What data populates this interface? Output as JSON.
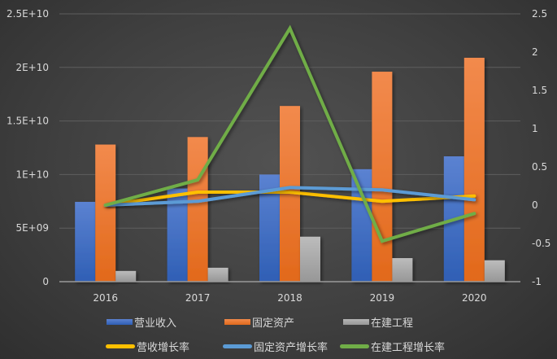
{
  "chart_data": {
    "type": "bar+line",
    "title": "",
    "categories": [
      "2016",
      "2017",
      "2018",
      "2019",
      "2020"
    ],
    "left_axis": {
      "ticks": [
        "0",
        "5E+09",
        "1E+10",
        "1.5E+10",
        "2E+10",
        "2.5E+10"
      ],
      "ylim": [
        0,
        25000000000
      ]
    },
    "right_axis": {
      "ticks": [
        "-1",
        "-0.5",
        "0",
        "0.5",
        "1",
        "1.5",
        "2",
        "2.5"
      ],
      "ylim": [
        -1,
        2.5
      ]
    },
    "grid": true,
    "legend_position": "bottom",
    "series": [
      {
        "name": "营业收入",
        "type": "bar",
        "axis": "left",
        "color": "#4472c4",
        "values": [
          7450000000,
          8700000000,
          10000000000,
          10500000000,
          11700000000
        ]
      },
      {
        "name": "固定资产",
        "type": "bar",
        "axis": "left",
        "color": "#ed7d31",
        "values": [
          12800000000,
          13500000000,
          16400000000,
          19600000000,
          20900000000
        ]
      },
      {
        "name": "在建工程",
        "type": "bar",
        "axis": "left",
        "color": "#a5a5a5",
        "values": [
          1000000000,
          1300000000,
          4200000000,
          2200000000,
          2000000000
        ]
      },
      {
        "name": "营收增长率",
        "type": "line",
        "axis": "right",
        "color": "#ffc000",
        "values": [
          0,
          0.17,
          0.17,
          0.05,
          0.12
        ]
      },
      {
        "name": "固定资产增长率",
        "type": "line",
        "axis": "right",
        "color": "#5b9bd5",
        "values": [
          0,
          0.05,
          0.23,
          0.2,
          0.07
        ]
      },
      {
        "name": "在建工程增长率",
        "type": "line",
        "axis": "right",
        "color": "#70ad47",
        "values": [
          0,
          0.33,
          2.31,
          -0.47,
          -0.11
        ]
      }
    ]
  },
  "legend": {
    "row1": [
      "营业收入",
      "固定资产",
      "在建工程"
    ],
    "row2": [
      "营收增长率",
      "固定资产增长率",
      "在建工程增长率"
    ]
  }
}
